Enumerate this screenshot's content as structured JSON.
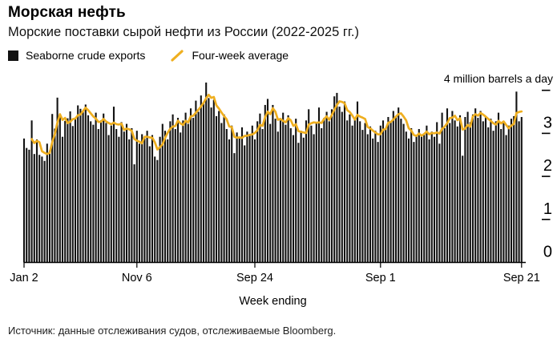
{
  "header": {
    "title": "Морская нефть",
    "subtitle": "Морские поставки сырой нефти из России (2022-2025 гг.)"
  },
  "legend": {
    "bar_label": "Seaborne crude exports",
    "line_label": "Four-week average"
  },
  "footer": {
    "source": "Источник: данные отслеживания судов, отслеживаемые Bloomberg."
  },
  "colors": {
    "bar": "#121212",
    "accent": "#EFAF20",
    "axis": "#000000",
    "background": "#ffffff"
  },
  "chart_data": {
    "type": "bar",
    "title": "Морская нефть",
    "subtitle": "Морские поставки сырой нефти из России (2022-2025 гг.)",
    "xlabel": "Week ending",
    "ylabel": "million barrels a day",
    "unit_label": "4 million barrels a day",
    "ylim": [
      0,
      4
    ],
    "y_ticks": [
      0,
      1,
      2,
      3,
      4
    ],
    "y_tick_text_labels": [
      "0",
      "1",
      "2",
      "3"
    ],
    "grid": false,
    "legend_position": "top-left",
    "x_ticks": [
      {
        "week_index": 0,
        "label": "Jan 2"
      },
      {
        "week_index": 44,
        "label": "Nov 6"
      },
      {
        "week_index": 90,
        "label": "Sep 24"
      },
      {
        "week_index": 139,
        "label": "Sep 1"
      },
      {
        "week_index": 194,
        "label": "Sep 21"
      }
    ],
    "series": [
      {
        "name": "Seaborne crude exports",
        "type": "bar",
        "values": [
          2.88,
          2.66,
          2.62,
          3.3,
          2.52,
          2.86,
          2.5,
          2.46,
          2.36,
          2.76,
          2.6,
          3.45,
          3.11,
          3.83,
          3.39,
          2.92,
          3.29,
          3.35,
          3.51,
          3.17,
          3.35,
          3.65,
          3.57,
          3.49,
          3.67,
          3.42,
          3.28,
          3.2,
          3.48,
          3.1,
          3.3,
          3.46,
          3.24,
          2.96,
          3.18,
          3.62,
          3.1,
          2.92,
          3.26,
          3.04,
          3.22,
          2.86,
          3.12,
          2.28,
          3.06,
          2.76,
          2.98,
          2.88,
          3.06,
          2.7,
          2.96,
          2.46,
          2.38,
          2.92,
          3.22,
          3.06,
          2.86,
          3.28,
          3.44,
          3.1,
          3.36,
          3.02,
          3.3,
          3.48,
          3.22,
          3.58,
          3.36,
          3.76,
          3.5,
          3.88,
          3.7,
          4.18,
          3.82,
          3.6,
          3.78,
          3.4,
          3.52,
          3.24,
          3.44,
          3.1,
          2.86,
          3.18,
          2.54,
          3.02,
          2.88,
          3.14,
          2.72,
          3.04,
          2.96,
          3.18,
          2.86,
          3.28,
          3.46,
          3.1,
          3.66,
          3.8,
          3.22,
          3.66,
          3.34,
          3.04,
          3.3,
          3.48,
          3.2,
          3.42,
          3.12,
          2.96,
          3.34,
          2.78,
          3.06,
          2.9,
          3.3,
          3.56,
          3.18,
          2.98,
          3.26,
          3.6,
          3.12,
          3.36,
          3.5,
          3.28,
          3.56,
          3.86,
          3.94,
          3.62,
          3.5,
          3.74,
          3.3,
          3.44,
          3.18,
          3.36,
          3.74,
          3.28,
          3.08,
          3.24,
          2.98,
          3.16,
          2.88,
          3.06,
          2.8,
          3.18,
          3.3,
          3.12,
          3.38,
          3.26,
          3.52,
          3.4,
          3.6,
          3.34,
          3.22,
          3.04,
          2.88,
          3.12,
          2.8,
          2.96,
          3.1,
          2.92,
          2.96,
          3.18,
          2.86,
          3.04,
          2.92,
          3.26,
          2.76,
          3.48,
          3.12,
          3.58,
          3.24,
          3.52,
          3.3,
          3.16,
          3.42,
          2.48,
          3.38,
          3.5,
          3.26,
          3.44,
          3.58,
          3.36,
          3.52,
          3.28,
          3.4,
          3.14,
          3.34,
          3.06,
          3.28,
          3.48,
          3.1,
          3.24,
          2.96,
          3.18,
          3.34,
          3.4,
          3.97,
          3.28,
          3.38
        ]
      },
      {
        "name": "Four-week average",
        "type": "line",
        "derived": "trailing_4_week_mean_of_bar_series"
      }
    ]
  }
}
